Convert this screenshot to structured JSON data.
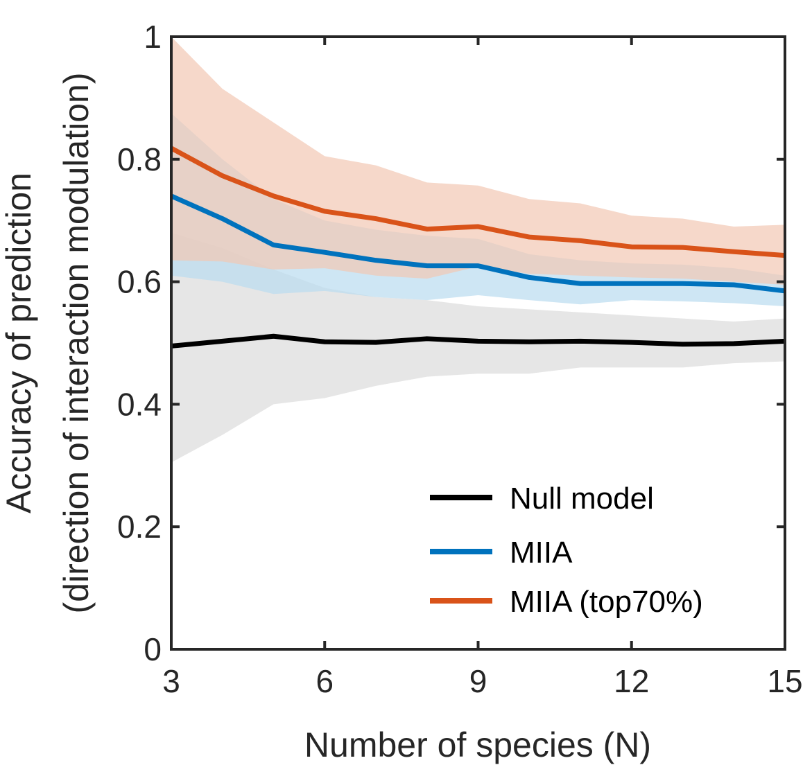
{
  "chart_data": {
    "type": "line",
    "xlabel": "Number of species (N)",
    "ylabel_line1": "Accuracy of prediction",
    "ylabel_line2": "(direction of interaction modulation)",
    "xlim": [
      3,
      15
    ],
    "ylim": [
      0,
      1
    ],
    "xticks": [
      3,
      6,
      9,
      12,
      15
    ],
    "xtick_labels": [
      "3",
      "6",
      "9",
      "12",
      "15"
    ],
    "yticks": [
      0,
      0.2,
      0.4,
      0.6,
      0.8,
      1
    ],
    "ytick_labels": [
      "0",
      "0.2",
      "0.4",
      "0.6",
      "0.8",
      "1"
    ],
    "legend_position": "bottom-right",
    "x": [
      3,
      4,
      5,
      6,
      7,
      8,
      9,
      10,
      11,
      12,
      13,
      14,
      15
    ],
    "series": [
      {
        "name": "Null model",
        "color": "#000000",
        "band_color": "#dcdcdc",
        "values": [
          0.495,
          0.503,
          0.511,
          0.502,
          0.501,
          0.507,
          0.503,
          0.502,
          0.503,
          0.501,
          0.498,
          0.499,
          0.503
        ],
        "lower": [
          0.305,
          0.35,
          0.4,
          0.41,
          0.43,
          0.445,
          0.45,
          0.45,
          0.46,
          0.46,
          0.46,
          0.467,
          0.47
        ],
        "upper": [
          0.68,
          0.655,
          0.62,
          0.59,
          0.575,
          0.57,
          0.56,
          0.555,
          0.55,
          0.545,
          0.54,
          0.535,
          0.54
        ]
      },
      {
        "name": "MIIA",
        "color": "#0072bd",
        "band_color": "#b9dbef",
        "values": [
          0.74,
          0.703,
          0.66,
          0.648,
          0.635,
          0.626,
          0.626,
          0.607,
          0.597,
          0.597,
          0.597,
          0.595,
          0.585
        ],
        "lower": [
          0.61,
          0.6,
          0.58,
          0.585,
          0.575,
          0.57,
          0.578,
          0.57,
          0.563,
          0.57,
          0.568,
          0.565,
          0.56
        ],
        "upper": [
          0.875,
          0.8,
          0.735,
          0.7,
          0.685,
          0.675,
          0.67,
          0.645,
          0.635,
          0.63,
          0.628,
          0.622,
          0.61
        ]
      },
      {
        "name": "MIIA (top70%)",
        "color": "#d95319",
        "band_color": "#f2c7b4",
        "values": [
          0.818,
          0.773,
          0.74,
          0.715,
          0.703,
          0.686,
          0.69,
          0.673,
          0.667,
          0.657,
          0.656,
          0.649,
          0.643
        ],
        "lower": [
          0.635,
          0.633,
          0.62,
          0.622,
          0.61,
          0.605,
          0.625,
          0.613,
          0.61,
          0.607,
          0.605,
          0.6,
          0.595
        ],
        "upper": [
          1.0,
          0.915,
          0.86,
          0.805,
          0.79,
          0.762,
          0.757,
          0.735,
          0.728,
          0.708,
          0.703,
          0.69,
          0.693
        ]
      }
    ]
  }
}
